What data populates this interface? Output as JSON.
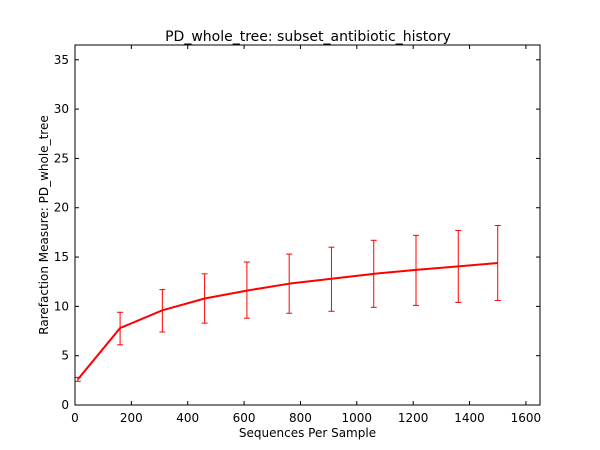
{
  "chart_data": {
    "type": "line",
    "title": "PD_whole_tree: subset_antibiotic_history",
    "xlabel": "Sequences Per Sample",
    "ylabel": "Rarefaction Measure: PD_whole_tree",
    "xlim": [
      0,
      1650
    ],
    "ylim": [
      0,
      36.5
    ],
    "xticks": [
      0,
      200,
      400,
      600,
      800,
      1000,
      1200,
      1400,
      1600
    ],
    "yticks": [
      0,
      5,
      10,
      15,
      20,
      25,
      30,
      35
    ],
    "grid": false,
    "series": [
      {
        "color": "#ff0000",
        "x": [
          10,
          160,
          310,
          460,
          610,
          760,
          910,
          1060,
          1210,
          1360,
          1500
        ],
        "y": [
          2.6,
          7.8,
          9.6,
          10.8,
          11.6,
          12.3,
          12.8,
          13.3,
          13.7,
          14.05,
          14.4
        ],
        "err_low": [
          2.4,
          6.1,
          7.4,
          8.3,
          8.8,
          9.3,
          9.5,
          9.9,
          10.1,
          10.4,
          10.6
        ],
        "err_high": [
          2.8,
          9.4,
          11.7,
          13.3,
          14.5,
          15.3,
          16.0,
          16.7,
          17.2,
          17.7,
          18.2
        ]
      }
    ]
  }
}
